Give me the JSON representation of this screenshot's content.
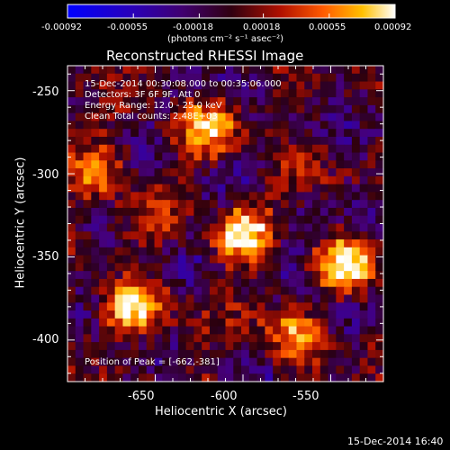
{
  "colorbar": {
    "ticks": [
      "-0.00092",
      "-0.00055",
      "-0.00018",
      "0.00018",
      "0.00055",
      "0.00092"
    ],
    "units_label": "(photons cm⁻² s⁻¹ asec⁻²)",
    "range": [
      -0.00092,
      0.00092
    ]
  },
  "plot": {
    "title": "Reconstructed RHESSI Image",
    "info_lines": [
      "15-Dec-2014 00:30:08.000 to 00:35:06.000",
      "Detectors: 3F 6F 9F, Att 0",
      "Energy Range: 12.0 - 25.0 keV",
      "Clean     Total counts: 2.48E+03"
    ],
    "peak_label": "Position of Peak = [-662,-381]",
    "x_label": "Heliocentric X (arcsec)",
    "y_label": "Heliocentric Y (arcsec)",
    "x_ticks": [
      "-650",
      "-600",
      "-550"
    ],
    "y_ticks": [
      "-250",
      "-300",
      "-350",
      "-400"
    ],
    "timestamp": "15-Dec-2014 16:40"
  },
  "chart_data": {
    "type": "heatmap",
    "title": "Reconstructed RHESSI Image",
    "xlabel": "Heliocentric X (arcsec)",
    "ylabel": "Heliocentric Y (arcsec)",
    "xlim": [
      -700,
      -520
    ],
    "ylim": [
      -425,
      -235
    ],
    "colorscale": "red-temperature",
    "value_range": [
      -0.00092,
      0.00092
    ],
    "peak": {
      "x": -662,
      "y": -381
    },
    "bright_sources": [
      {
        "x": -662,
        "y": -381,
        "level": 1.0
      },
      {
        "x": -600,
        "y": -335,
        "level": 0.95
      },
      {
        "x": -540,
        "y": -355,
        "level": 0.8
      },
      {
        "x": -620,
        "y": -270,
        "level": 0.75
      },
      {
        "x": -685,
        "y": -300,
        "level": 0.7
      },
      {
        "x": -570,
        "y": -400,
        "level": 0.65
      }
    ]
  }
}
